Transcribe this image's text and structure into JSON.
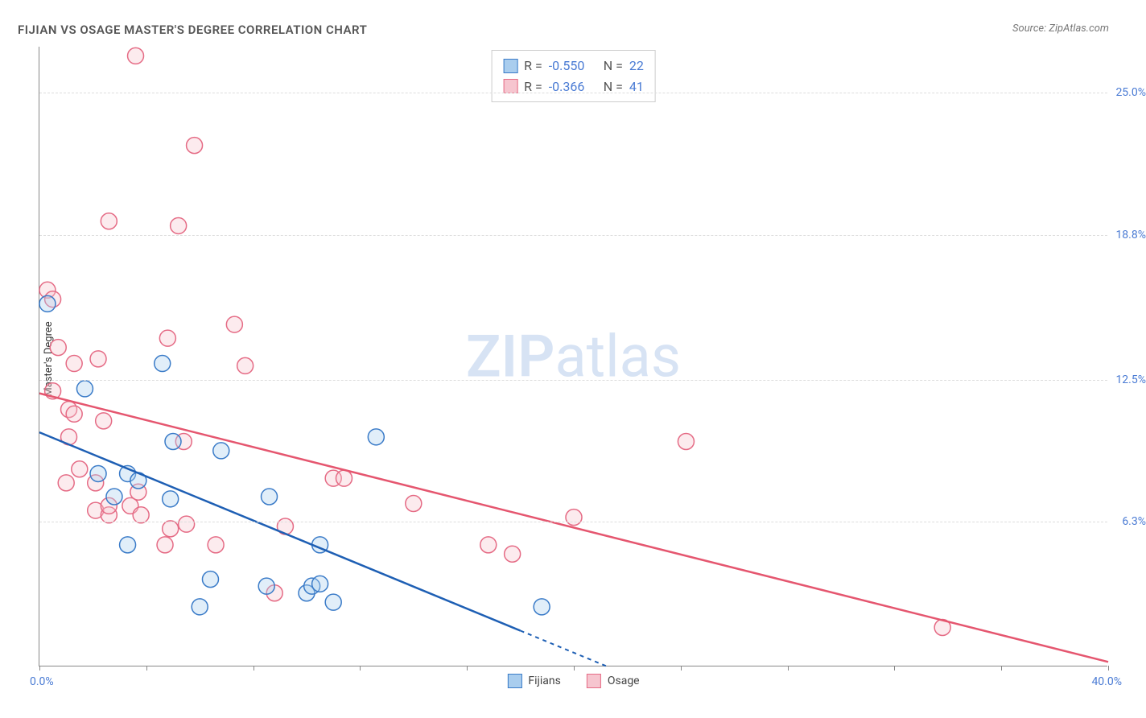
{
  "title": "FIJIAN VS OSAGE MASTER'S DEGREE CORRELATION CHART",
  "title_color": "#555555",
  "source": "Source: ZipAtlas.com",
  "source_color": "#777777",
  "y_axis_label": "Master's Degree",
  "watermark": {
    "bold": "ZIP",
    "light": "atlas",
    "color": "#d7e3f4"
  },
  "colors": {
    "fijians_fill": "#a9cdee",
    "fijians_stroke": "#3a7bc8",
    "fijians_line": "#1e5fb4",
    "osage_fill": "#f6c5cf",
    "osage_stroke": "#e56b85",
    "osage_line": "#e5566f",
    "axis_label": "#4a7bd4",
    "grid": "#dddddd",
    "border": "#888888"
  },
  "axes": {
    "xlim": [
      0,
      40
    ],
    "ylim": [
      0,
      27
    ],
    "x_label_min": "0.0%",
    "x_label_max": "40.0%",
    "x_ticks": [
      0,
      4,
      8,
      12,
      16,
      20,
      24,
      28,
      32,
      36,
      40
    ],
    "y_gridlines": [
      6.3,
      12.5,
      18.8,
      25.0
    ],
    "y_tick_labels": [
      "6.3%",
      "12.5%",
      "18.8%",
      "25.0%"
    ]
  },
  "stats": [
    {
      "series": "fijians",
      "R": "-0.550",
      "N": "22"
    },
    {
      "series": "osage",
      "R": "-0.366",
      "N": "41"
    }
  ],
  "legend": [
    {
      "label": "Fijians",
      "series": "fijians"
    },
    {
      "label": "Osage",
      "series": "osage"
    }
  ],
  "trend_lines": {
    "fijians": {
      "x1": 0,
      "y1": 10.2,
      "x2": 20,
      "y2": 0.6,
      "dash_after_x": 18
    },
    "osage": {
      "x1": 0,
      "y1": 11.9,
      "x2": 40,
      "y2": 0.2
    }
  },
  "series": {
    "fijians": {
      "marker_radius": 10,
      "points": [
        [
          0.3,
          15.8
        ],
        [
          1.7,
          12.1
        ],
        [
          4.6,
          13.2
        ],
        [
          2.2,
          8.4
        ],
        [
          3.3,
          8.4
        ],
        [
          3.7,
          8.1
        ],
        [
          2.8,
          7.4
        ],
        [
          4.9,
          7.3
        ],
        [
          5.0,
          9.8
        ],
        [
          6.8,
          9.4
        ],
        [
          8.6,
          7.4
        ],
        [
          12.6,
          10.0
        ],
        [
          8.5,
          3.5
        ],
        [
          10.0,
          3.2
        ],
        [
          10.2,
          3.5
        ],
        [
          10.5,
          3.6
        ],
        [
          11.0,
          2.8
        ],
        [
          6.0,
          2.6
        ],
        [
          6.4,
          3.8
        ],
        [
          18.8,
          2.6
        ],
        [
          3.3,
          5.3
        ],
        [
          10.5,
          5.3
        ]
      ]
    },
    "osage": {
      "marker_radius": 10,
      "points": [
        [
          0.3,
          16.4
        ],
        [
          3.6,
          26.6
        ],
        [
          5.8,
          22.7
        ],
        [
          2.6,
          19.4
        ],
        [
          5.2,
          19.2
        ],
        [
          0.7,
          13.9
        ],
        [
          1.3,
          13.2
        ],
        [
          2.2,
          13.4
        ],
        [
          7.3,
          14.9
        ],
        [
          4.8,
          14.3
        ],
        [
          7.7,
          13.1
        ],
        [
          0.5,
          12.0
        ],
        [
          1.1,
          11.2
        ],
        [
          1.3,
          11.0
        ],
        [
          2.4,
          10.7
        ],
        [
          1.1,
          10.0
        ],
        [
          5.4,
          9.8
        ],
        [
          1.5,
          8.6
        ],
        [
          1.0,
          8.0
        ],
        [
          2.1,
          8.0
        ],
        [
          2.1,
          6.8
        ],
        [
          2.6,
          6.6
        ],
        [
          2.6,
          7.0
        ],
        [
          3.4,
          7.0
        ],
        [
          3.7,
          7.6
        ],
        [
          3.8,
          6.6
        ],
        [
          4.9,
          6.0
        ],
        [
          5.5,
          6.2
        ],
        [
          4.7,
          5.3
        ],
        [
          6.6,
          5.3
        ],
        [
          9.2,
          6.1
        ],
        [
          11.0,
          8.2
        ],
        [
          11.4,
          8.2
        ],
        [
          14.0,
          7.1
        ],
        [
          16.8,
          5.3
        ],
        [
          17.7,
          4.9
        ],
        [
          20.0,
          6.5
        ],
        [
          24.2,
          9.8
        ],
        [
          33.8,
          1.7
        ],
        [
          8.8,
          3.2
        ],
        [
          0.5,
          16.0
        ]
      ]
    }
  }
}
